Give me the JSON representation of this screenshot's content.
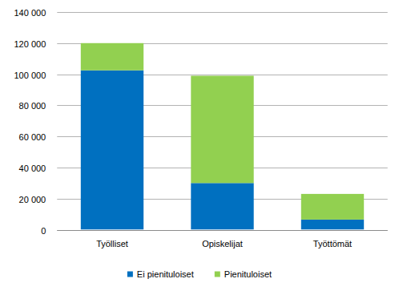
{
  "chart_data": {
    "type": "bar",
    "stacked": true,
    "grid": true,
    "legend": "bottom",
    "categories": [
      "Työlliset",
      "Opiskelijat",
      "Työttömät"
    ],
    "series": [
      {
        "name": "Ei pienituloiset",
        "color": "#0070c0",
        "values": [
          102500,
          30000,
          6500
        ]
      },
      {
        "name": "Pienituloiset",
        "color": "#92d050",
        "values": [
          17500,
          69000,
          16500
        ]
      }
    ],
    "ylim": [
      0,
      140000
    ],
    "yticks": [
      0,
      {
        "value": 20000,
        "label": "20 000"
      },
      {
        "value": 40000,
        "label": "40 000"
      },
      {
        "value": 60000,
        "label": "60 000"
      },
      {
        "value": 80000,
        "label": "80 000"
      },
      {
        "value": 100000,
        "label": "100 000"
      },
      {
        "value": 120000,
        "label": "120 000"
      },
      {
        "value": 140000,
        "label": "140 000"
      }
    ]
  }
}
